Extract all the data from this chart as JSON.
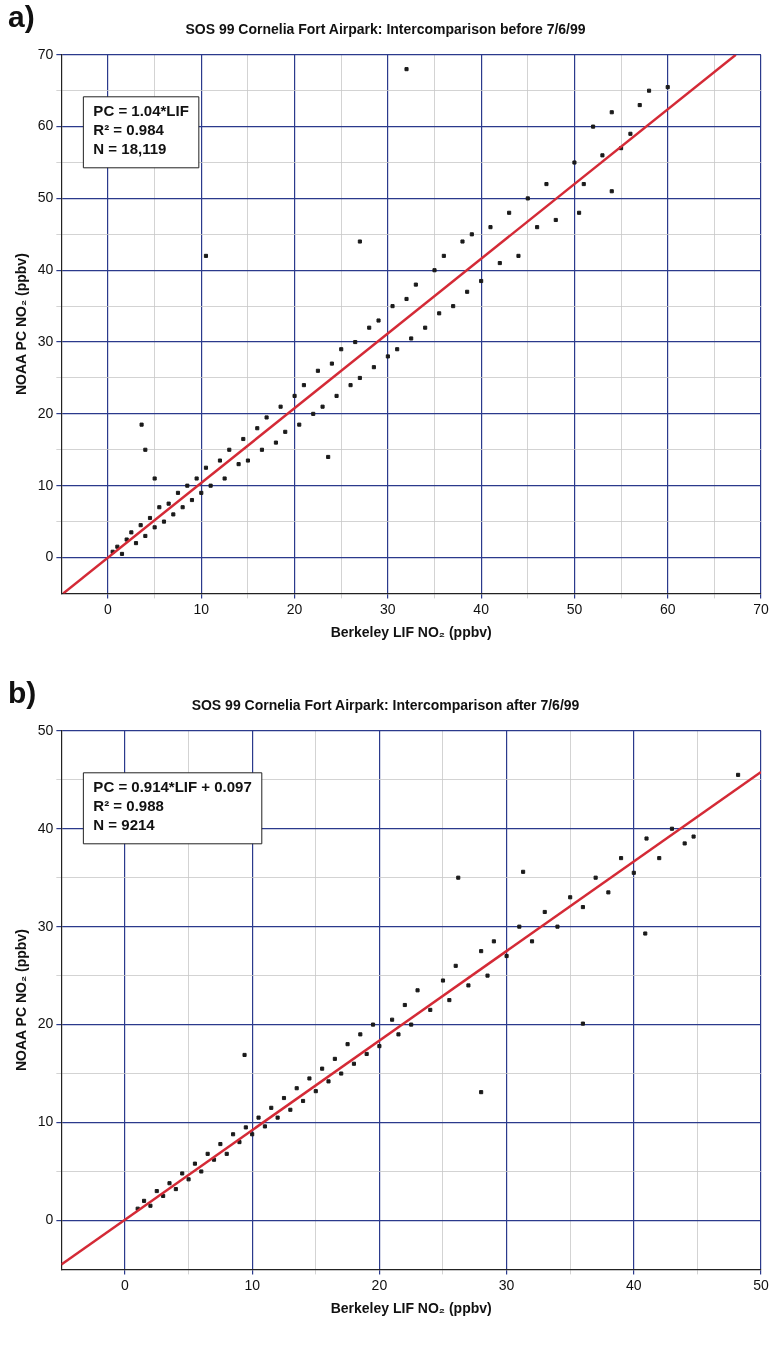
{
  "chart_data": [
    {
      "type": "scatter",
      "title": "SOS 99 Cornelia Fort Airpark: Intercomparison before 7/6/99",
      "xlabel": "Berkeley LIF NO₂ (ppbv)",
      "ylabel": "NOAA PC NO₂ (ppbv)",
      "annotations": [
        "a)",
        "PC = 1.04*LIF\nR² = 0.984\nN = 18,119"
      ],
      "xlim": [
        -5,
        70
      ],
      "ylim": [
        -5,
        70
      ],
      "xticks": [
        0,
        {
          "value": 5,
          "label": null
        },
        10,
        {
          "value": 15,
          "label": null
        },
        20,
        {
          "value": 25,
          "label": null
        },
        30,
        {
          "value": 35,
          "label": null
        },
        40,
        {
          "value": 45,
          "label": null
        },
        50,
        {
          "value": 55,
          "label": null
        },
        60,
        {
          "value": 65,
          "label": null
        },
        70
      ],
      "yticks": [
        0,
        {
          "value": 5,
          "label": null
        },
        10,
        {
          "value": 15,
          "label": null
        },
        20,
        {
          "value": 25,
          "label": null
        },
        30,
        {
          "value": 35,
          "label": null
        },
        40,
        {
          "value": 45,
          "label": null
        },
        50,
        {
          "value": 55,
          "label": null
        },
        60,
        {
          "value": 65,
          "label": null
        },
        70
      ],
      "grid": true,
      "marker": "square",
      "series": [
        {
          "type": "scatter",
          "color": "#1a1a1a",
          "x": [
            0.5,
            1,
            1.5,
            2,
            2.5,
            3,
            3.5,
            4,
            4.5,
            5,
            5.5,
            6,
            6.5,
            7,
            7.5,
            8,
            8.5,
            9,
            9.5,
            10,
            10.5,
            11,
            12,
            12.5,
            13,
            14,
            14.5,
            15,
            16,
            16.5,
            17,
            18,
            18.5,
            19,
            20,
            20.5,
            21,
            22,
            22.5,
            23,
            24,
            24.5,
            25,
            26,
            26.5,
            27,
            28,
            28.5,
            29,
            30,
            30.5,
            31,
            32,
            32.5,
            33,
            34,
            35,
            35.5,
            36,
            37,
            38,
            38.5,
            39,
            40,
            41,
            42,
            43,
            44,
            45,
            46,
            47,
            48,
            50,
            50.5,
            51,
            52,
            53,
            54,
            54,
            55,
            56,
            57,
            58,
            60,
            10.5,
            32,
            3.6,
            4,
            23.6,
            27,
            5
          ],
          "values": [
            0.8,
            1.5,
            0.5,
            2.5,
            3.5,
            2,
            4.5,
            3,
            5.5,
            4.2,
            7,
            5,
            7.5,
            6,
            9,
            7,
            10,
            8,
            11,
            9,
            12.5,
            10,
            13.5,
            11,
            15,
            13,
            16.5,
            13.5,
            18,
            15,
            19.5,
            16,
            21,
            17.5,
            22.5,
            18.5,
            24,
            20,
            26,
            21,
            27,
            22.5,
            29,
            24,
            30,
            25,
            32,
            26.5,
            33,
            28,
            35,
            29,
            36,
            30.5,
            38,
            32,
            40,
            34,
            42,
            35,
            44,
            37,
            45,
            38.5,
            46,
            41,
            48,
            42,
            50,
            46,
            52,
            47,
            55,
            48,
            52,
            60,
            56,
            62,
            51,
            57,
            59,
            63,
            65,
            65.5,
            42,
            68,
            18.5,
            15,
            14,
            44,
            11
          ]
        },
        {
          "type": "line",
          "color": "#d42a36",
          "marker": "none",
          "x": [
            -4.8,
            67.3
          ],
          "values": [
            -5,
            70
          ]
        }
      ]
    },
    {
      "type": "scatter",
      "title": "SOS 99 Cornelia Fort Airpark: Intercomparison after 7/6/99",
      "xlabel": "Berkeley LIF NO₂ (ppbv)",
      "ylabel": "NOAA PC NO₂ (ppbv)",
      "annotations": [
        "b)",
        "PC = 0.914*LIF + 0.097\nR² = 0.988\nN = 9214"
      ],
      "xlim": [
        -5,
        50
      ],
      "ylim": [
        -5,
        50
      ],
      "xticks": [
        0,
        {
          "value": 5,
          "label": null
        },
        10,
        {
          "value": 15,
          "label": null
        },
        20,
        {
          "value": 25,
          "label": null
        },
        30,
        {
          "value": 35,
          "label": null
        },
        40,
        {
          "value": 45,
          "label": null
        },
        50
      ],
      "yticks": [
        0,
        {
          "value": 5,
          "label": null
        },
        10,
        {
          "value": 15,
          "label": null
        },
        20,
        {
          "value": 25,
          "label": null
        },
        30,
        {
          "value": 35,
          "label": null
        },
        40,
        {
          "value": 45,
          "label": null
        },
        50
      ],
      "grid": true,
      "marker": "square",
      "series": [
        {
          "type": "scatter",
          "color": "#1a1a1a",
          "x": [
            1,
            1.5,
            2,
            2.5,
            3,
            3.5,
            4,
            4.5,
            5,
            5.5,
            6,
            6.5,
            7,
            7.5,
            8,
            8.5,
            9,
            9.5,
            10,
            10.5,
            11,
            11.5,
            12,
            12.5,
            13,
            13.5,
            14,
            14.5,
            15,
            15.5,
            16,
            16.5,
            17,
            17.5,
            18,
            18.5,
            19,
            19.5,
            20,
            21,
            21.5,
            22,
            22.5,
            23,
            24,
            25,
            25.5,
            26,
            27,
            28,
            28.5,
            29,
            30,
            31,
            32,
            33,
            34,
            35,
            36,
            37,
            38,
            39,
            40,
            41,
            42,
            43,
            44,
            31.3,
            26.2,
            40.9,
            28,
            36,
            48.2,
            9.4,
            44.7
          ],
          "values": [
            1.2,
            2,
            1.5,
            3,
            2.5,
            3.8,
            3.2,
            4.8,
            4.2,
            5.8,
            5,
            6.8,
            6.2,
            7.8,
            6.8,
            8.8,
            8,
            9.5,
            8.8,
            10.5,
            9.6,
            11.5,
            10.5,
            12.5,
            11.3,
            13.5,
            12.2,
            14.5,
            13.2,
            15.5,
            14.2,
            16.5,
            15,
            18,
            16,
            19,
            17,
            20,
            17.8,
            20.5,
            19,
            22,
            20,
            23.5,
            21.5,
            24.5,
            22.5,
            26,
            24,
            27.5,
            25,
            28.5,
            27,
            30,
            28.5,
            31.5,
            30,
            33,
            32,
            35,
            33.5,
            37,
            35.5,
            39,
            37,
            40,
            38.5,
            35.6,
            35,
            29.3,
            13.1,
            20.1,
            45.5,
            16.9,
            39.2
          ]
        },
        {
          "type": "line",
          "color": "#d42a36",
          "marker": "none",
          "x": [
            -5,
            50
          ],
          "values": [
            -4.5,
            45.8
          ]
        }
      ]
    }
  ]
}
